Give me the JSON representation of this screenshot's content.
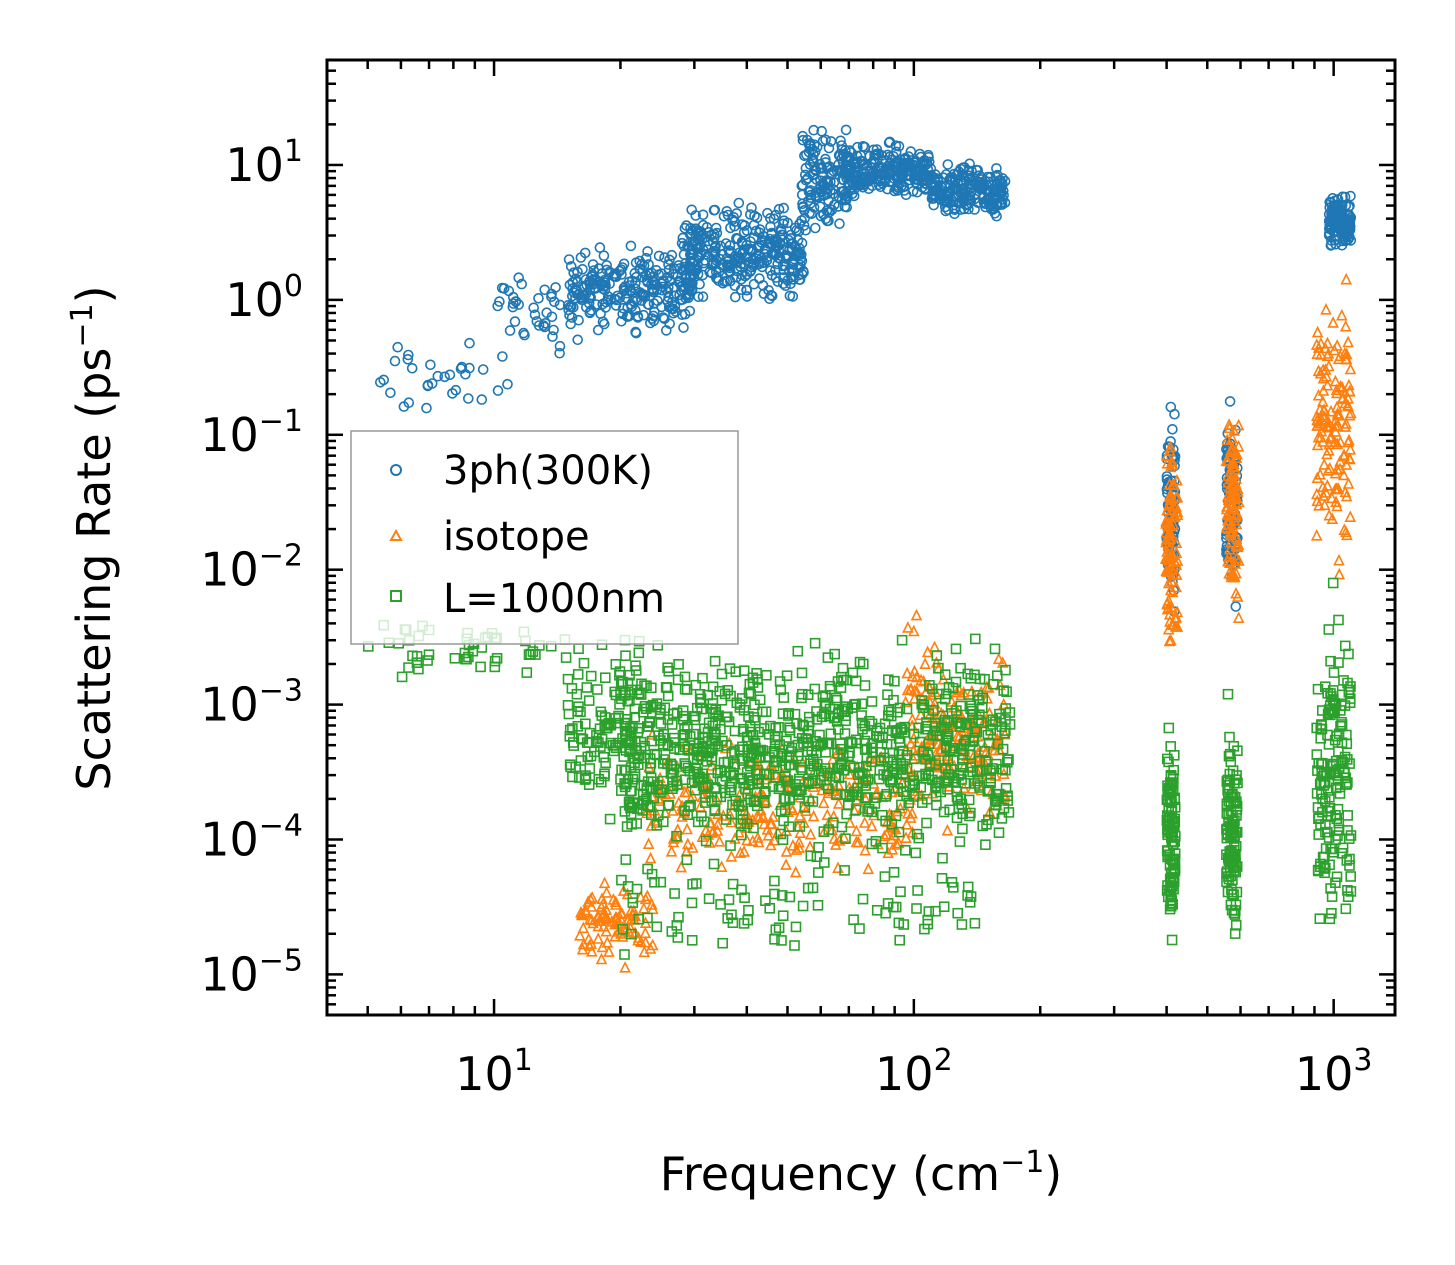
{
  "chart_data": {
    "type": "scatter",
    "xscale": "log",
    "yscale": "log",
    "xlabel": "Frequency (cm",
    "xlabel_sup": "−1",
    "xlabel_tail": ")",
    "ylabel": "Scattering Rate (ps",
    "ylabel_sup": "−1",
    "ylabel_tail": ")",
    "xlim": [
      4.0,
      1400
    ],
    "ylim": [
      5e-06,
      60
    ],
    "xticks": [
      {
        "value": 10,
        "base": "10",
        "exp": "1"
      },
      {
        "value": 100,
        "base": "10",
        "exp": "2"
      },
      {
        "value": 1000,
        "base": "10",
        "exp": "3"
      }
    ],
    "yticks": [
      {
        "value": 1e-05,
        "base": "10",
        "exp": "−5"
      },
      {
        "value": 0.0001,
        "base": "10",
        "exp": "−4"
      },
      {
        "value": 0.001,
        "base": "10",
        "exp": "−3"
      },
      {
        "value": 0.01,
        "base": "10",
        "exp": "−2"
      },
      {
        "value": 0.1,
        "base": "10",
        "exp": "−1"
      },
      {
        "value": 1,
        "base": "10",
        "exp": "0"
      },
      {
        "value": 10,
        "base": "10",
        "exp": "1"
      }
    ],
    "legend_position": "center-left",
    "series": [
      {
        "name": "3ph(300K)",
        "marker": "circle",
        "color": "#1f77b4",
        "clusters": [
          {
            "x": [
              5,
              11
            ],
            "y": [
              0.1,
              0.6
            ],
            "n": 30
          },
          {
            "x": [
              10,
              16
            ],
            "y": [
              0.3,
              2.0
            ],
            "n": 40
          },
          {
            "x": [
              15,
              30
            ],
            "y": [
              0.5,
              3.0
            ],
            "n": 260
          },
          {
            "x": [
              28,
              55
            ],
            "y": [
              0.8,
              6.0
            ],
            "n": 320
          },
          {
            "x": [
              54,
              70
            ],
            "y": [
              2.0,
              28
            ],
            "n": 140
          },
          {
            "x": [
              68,
              110
            ],
            "y": [
              5.0,
              16
            ],
            "n": 240
          },
          {
            "x": [
              110,
              165
            ],
            "y": [
              3.5,
              12
            ],
            "n": 200
          },
          {
            "x": [
              400,
              420
            ],
            "y": [
              0.003,
              0.25
            ],
            "n": 90
          },
          {
            "x": [
              555,
              590
            ],
            "y": [
              0.004,
              0.3
            ],
            "n": 90
          },
          {
            "x": [
              975,
              1100
            ],
            "y": [
              2.2,
              6.5
            ],
            "n": 140
          }
        ]
      },
      {
        "name": "isotope",
        "marker": "triangle",
        "color": "#ff7f0e",
        "clusters": [
          {
            "x": [
              16,
              24
            ],
            "y": [
              1e-05,
              6e-05
            ],
            "n": 90
          },
          {
            "x": [
              23,
              100
            ],
            "y": [
              4e-05,
              0.0008
            ],
            "n": 260
          },
          {
            "x": [
              95,
              115
            ],
            "y": [
              0.0001,
              0.006
            ],
            "n": 70
          },
          {
            "x": [
              115,
              165
            ],
            "y": [
              8e-05,
              0.003
            ],
            "n": 110
          },
          {
            "x": [
              398,
              425
            ],
            "y": [
              0.0015,
              0.15
            ],
            "n": 90
          },
          {
            "x": [
              555,
              595
            ],
            "y": [
              0.002,
              0.4
            ],
            "n": 100
          },
          {
            "x": [
              910,
              1100
            ],
            "y": [
              0.006,
              2.5
            ],
            "n": 140
          }
        ]
      },
      {
        "name": "L=1000nm",
        "marker": "square",
        "color": "#2ca02c",
        "clusters": [
          {
            "x": [
              5,
              16
            ],
            "y": [
              0.0012,
              0.005
            ],
            "n": 50
          },
          {
            "x": [
              15,
              25
            ],
            "y": [
              0.0001,
              0.004
            ],
            "n": 120
          },
          {
            "x": [
              20,
              170
            ],
            "y": [
              5e-05,
              0.004
            ],
            "n": 900
          },
          {
            "x": [
              20,
              140
            ],
            "y": [
              1e-05,
              0.0001
            ],
            "n": 90
          },
          {
            "x": [
              400,
              420
            ],
            "y": [
              1.2e-05,
              0.0013
            ],
            "n": 110
          },
          {
            "x": [
              555,
              590
            ],
            "y": [
              1e-05,
              0.0013
            ],
            "n": 120
          },
          {
            "x": [
              910,
              1100
            ],
            "y": [
              1e-05,
              0.009
            ],
            "n": 160
          }
        ]
      }
    ]
  }
}
